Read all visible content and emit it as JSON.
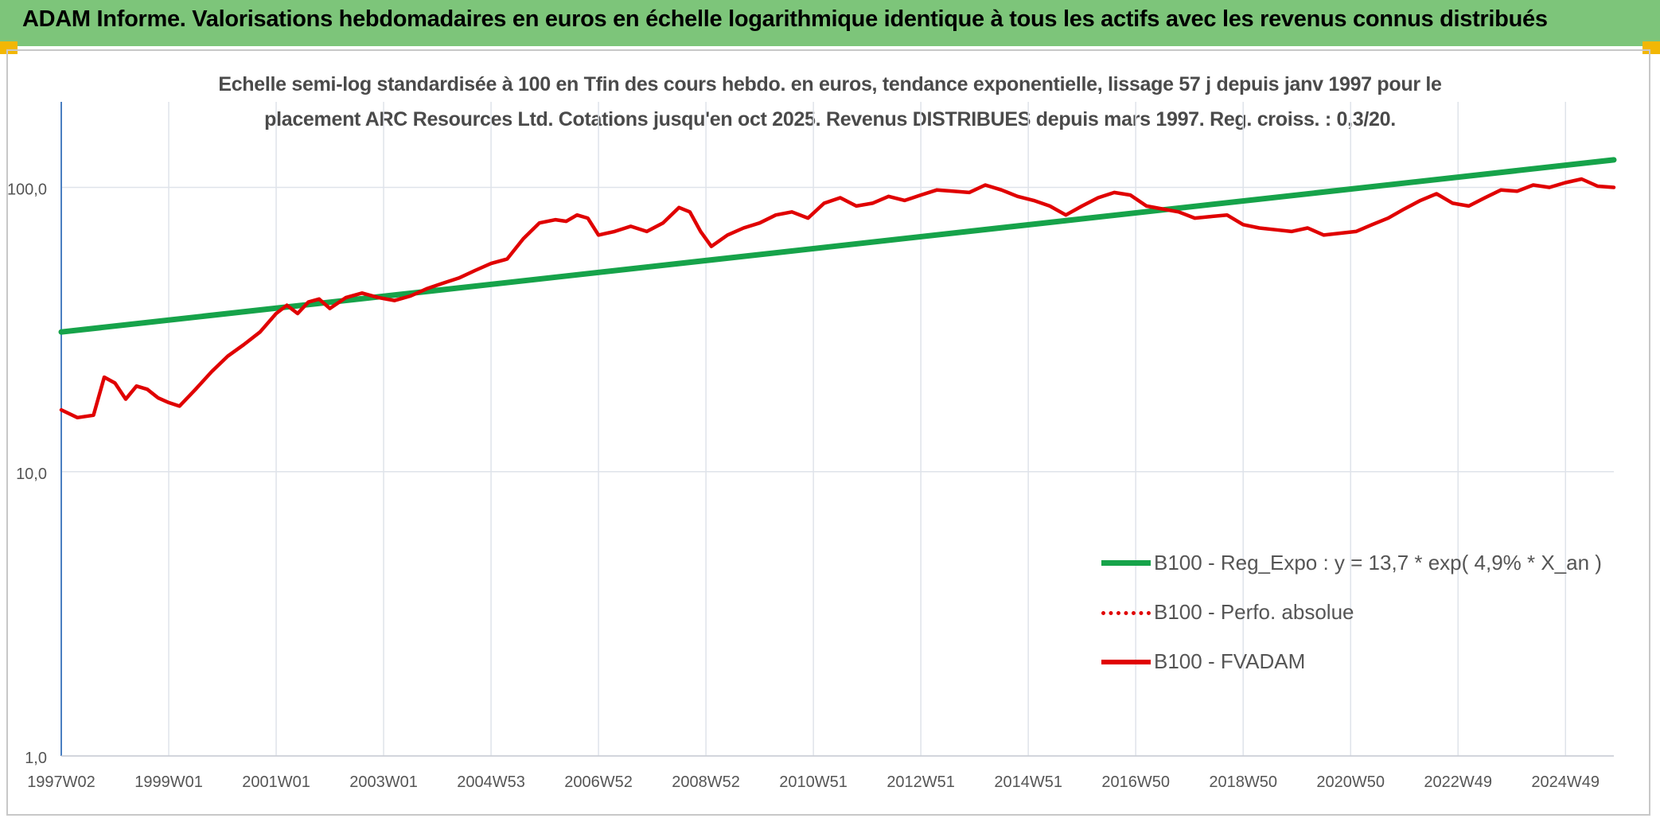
{
  "header": {
    "title": "ADAM Informe. Valorisations hebdomadaires en euros en échelle logarithmique identique à tous les actifs avec les revenus connus distribués"
  },
  "colors": {
    "banner": "#7dc57a",
    "regression": "#16a34a",
    "fvadam": "#e00000",
    "perfo": "#e00000",
    "grid": "#dfe3ea",
    "axis": "#4a7fc1"
  },
  "chart_data": {
    "type": "line",
    "title_line1": "Echelle semi-log standardisée à 100 en Tfin des cours hebdo. en euros, tendance exponentielle, lissage 57 j depuis janv 1997 pour le",
    "title_line2": "placement ARC Resources Ltd. Cotations jusqu'en oct 2025. Revenus DISTRIBUES depuis mars 1997. Reg. croiss. : 0,3/20.",
    "y_scale": "log",
    "ylim": [
      1,
      200
    ],
    "xlim": [
      1997.0,
      2025.9
    ],
    "grid": true,
    "legend_position": "bottom-right",
    "y_ticks": [
      {
        "value": 1,
        "label": "1,0"
      },
      {
        "value": 10,
        "label": "10,0"
      },
      {
        "value": 100,
        "label": "100,0"
      }
    ],
    "x_ticks": [
      {
        "value": 1997.0,
        "label": "1997W02"
      },
      {
        "value": 1999.0,
        "label": "1999W01"
      },
      {
        "value": 2001.0,
        "label": "2001W01"
      },
      {
        "value": 2003.0,
        "label": "2003W01"
      },
      {
        "value": 2005.0,
        "label": "2004W53"
      },
      {
        "value": 2007.0,
        "label": "2006W52"
      },
      {
        "value": 2009.0,
        "label": "2008W52"
      },
      {
        "value": 2011.0,
        "label": "2010W51"
      },
      {
        "value": 2013.0,
        "label": "2012W51"
      },
      {
        "value": 2015.0,
        "label": "2014W51"
      },
      {
        "value": 2017.0,
        "label": "2016W50"
      },
      {
        "value": 2019.0,
        "label": "2018W50"
      },
      {
        "value": 2021.0,
        "label": "2020W50"
      },
      {
        "value": 2023.0,
        "label": "2022W49"
      },
      {
        "value": 2025.0,
        "label": "2024W49"
      }
    ],
    "series": [
      {
        "name": "B100 - Reg_Expo : y = 13,7 * exp( 4,9% *  X_an )",
        "style": "solid-thick",
        "color": "#16a34a",
        "x": [
          1997.0,
          2025.9
        ],
        "y": [
          31,
          125
        ]
      },
      {
        "name": "B100 - Perfo. absolue",
        "style": "dotted",
        "color": "#e00000",
        "x": [],
        "y": []
      },
      {
        "name": "B100 - FVADAM",
        "style": "solid",
        "color": "#e00000",
        "x": [
          1997.0,
          1997.3,
          1997.6,
          1997.8,
          1998.0,
          1998.2,
          1998.4,
          1998.6,
          1998.8,
          1999.0,
          1999.2,
          1999.5,
          1999.8,
          2000.1,
          2000.4,
          2000.7,
          2001.0,
          2001.2,
          2001.4,
          2001.6,
          2001.8,
          2002.0,
          2002.3,
          2002.6,
          2002.9,
          2003.2,
          2003.5,
          2003.8,
          2004.1,
          2004.4,
          2004.7,
          2005.0,
          2005.3,
          2005.6,
          2005.9,
          2006.2,
          2006.4,
          2006.6,
          2006.8,
          2007.0,
          2007.3,
          2007.6,
          2007.9,
          2008.2,
          2008.5,
          2008.7,
          2008.9,
          2009.1,
          2009.4,
          2009.7,
          2010.0,
          2010.3,
          2010.6,
          2010.9,
          2011.2,
          2011.5,
          2011.8,
          2012.1,
          2012.4,
          2012.7,
          2013.0,
          2013.3,
          2013.6,
          2013.9,
          2014.2,
          2014.5,
          2014.8,
          2015.1,
          2015.4,
          2015.7,
          2016.0,
          2016.3,
          2016.6,
          2016.9,
          2017.2,
          2017.5,
          2017.8,
          2018.1,
          2018.4,
          2018.7,
          2019.0,
          2019.3,
          2019.6,
          2019.9,
          2020.2,
          2020.5,
          2020.8,
          2021.1,
          2021.4,
          2021.7,
          2022.0,
          2022.3,
          2022.6,
          2022.9,
          2023.2,
          2023.5,
          2023.8,
          2024.1,
          2024.4,
          2024.7,
          2025.0,
          2025.3,
          2025.6,
          2025.9
        ],
        "y": [
          16.5,
          15.5,
          15.8,
          21.5,
          20.5,
          18.0,
          20.0,
          19.5,
          18.2,
          17.5,
          17.0,
          19.5,
          22.5,
          25.5,
          28.0,
          31.0,
          36.0,
          38.5,
          36.0,
          39.5,
          40.5,
          37.5,
          41.0,
          42.5,
          41.0,
          40.0,
          41.5,
          44.0,
          46.0,
          48.0,
          51.0,
          54.0,
          56.0,
          66.0,
          75.0,
          77.0,
          76.0,
          80.0,
          78.0,
          68.0,
          70.0,
          73.0,
          70.0,
          75.0,
          85.0,
          82.0,
          70.0,
          62.0,
          68.0,
          72.0,
          75.0,
          80.0,
          82.0,
          78.0,
          88.0,
          92.0,
          86.0,
          88.0,
          93.0,
          90.0,
          94.0,
          98.0,
          97.0,
          96.0,
          102.0,
          98.0,
          93.0,
          90.0,
          86.0,
          80.0,
          86.0,
          92.0,
          96.0,
          94.0,
          86.0,
          84.0,
          82.0,
          78.0,
          79.0,
          80.0,
          74.0,
          72.0,
          71.0,
          70.0,
          72.0,
          68.0,
          69.0,
          70.0,
          74.0,
          78.0,
          84.0,
          90.0,
          95.0,
          88.0,
          86.0,
          92.0,
          98.0,
          97.0,
          102.0,
          100.0,
          104.0,
          107.0,
          101.0,
          100.0
        ]
      }
    ]
  }
}
